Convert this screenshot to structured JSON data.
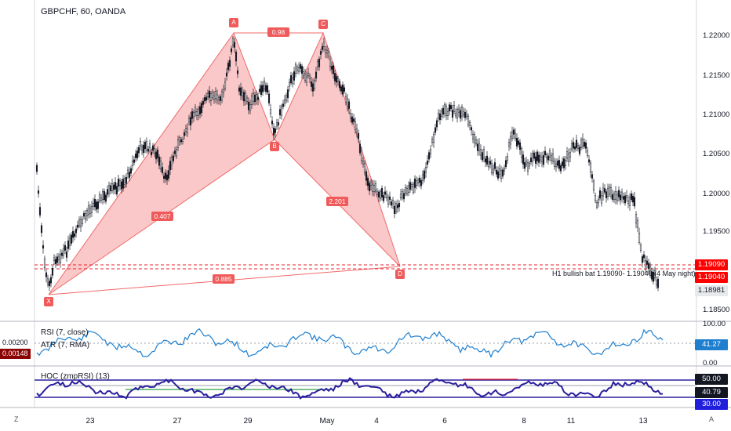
{
  "symbol_title": "GBPCHF, 60, OANDA",
  "colors": {
    "pattern_fill": "#f8b6b6",
    "pattern_line": "#f06a6a",
    "label_bg": "#f05a5a",
    "candle": "#131722",
    "rsi": "#1e7fcf",
    "hoc": "#2a1f9d",
    "red_tag": "#ff0000",
    "dark_red_tag": "#8b0000",
    "blue_tag": "#1e1edc"
  },
  "pattern": {
    "points": [
      "X",
      "A",
      "B",
      "C",
      "D"
    ],
    "ratios": [
      "0.98",
      "0.407",
      "2.201",
      "0.885"
    ],
    "annotation": "H1 bullish bat 1.19090- 1.19040 (4 May night)"
  },
  "price_axis": {
    "labels": [
      "1.22000",
      "1.21500",
      "1.21000",
      "1.20500",
      "1.20000",
      "1.19500",
      "1.18500"
    ],
    "tags": {
      "upper_red": "1.19090",
      "lower_red": "1.19040",
      "current": "1.18981"
    }
  },
  "rsi_panel": {
    "label": "RSI (7, close)",
    "atr_label": "ATR (7, RMA)",
    "axis": [
      "100.00",
      "0.00"
    ],
    "value": "41.27",
    "atr_value": "0.00200",
    "atr_current": "0.00148"
  },
  "hoc_panel": {
    "label": "HOC (zmpRSI) (13)",
    "values": [
      "50.00",
      "40.79",
      "30.00"
    ]
  },
  "time_axis": [
    "23",
    "27",
    "29",
    "May",
    "4",
    "6",
    "8",
    "11",
    "13"
  ],
  "corners": {
    "left": "Z",
    "right": "A"
  }
}
